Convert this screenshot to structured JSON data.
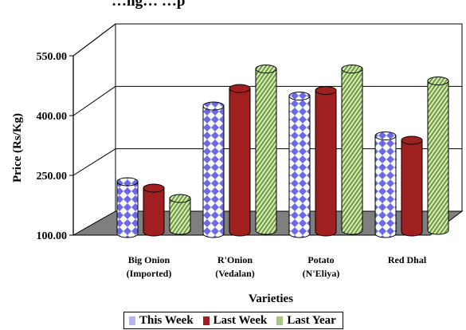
{
  "chart_data": {
    "type": "bar",
    "title": "…ng…                                                    …p",
    "xlabel": "Varieties",
    "ylabel": "Price (Rs/Kg)",
    "ylim": [
      100,
      550
    ],
    "yticks": [
      100,
      250,
      400,
      550
    ],
    "ytick_labels": [
      "100.00",
      "250.00",
      "400.00",
      "550.00"
    ],
    "categories": [
      "Big Onion\n(Imported)",
      "R'Onion\n(Vedalan)",
      "Potato\n(N'Eliya)",
      "Red Dhal"
    ],
    "series": [
      {
        "name": "This Week",
        "values": [
          230,
          420,
          445,
          345
        ],
        "color": "#b8b4f0",
        "pattern": "diamond"
      },
      {
        "name": "Last Week",
        "values": [
          210,
          460,
          455,
          330
        ],
        "color": "#a02020",
        "pattern": "solid"
      },
      {
        "name": "Last Year",
        "values": [
          180,
          505,
          505,
          475
        ],
        "color": "#a8c880",
        "pattern": "diagonal"
      }
    ],
    "legend_position": "bottom",
    "grid": true,
    "style": "3d-cylinder"
  },
  "legend": {
    "items": [
      {
        "label": "This Week",
        "color": "#b8b4f0"
      },
      {
        "label": "Last Week",
        "color": "#a02020"
      },
      {
        "label": "Last Year",
        "color": "#a8c880"
      }
    ]
  }
}
